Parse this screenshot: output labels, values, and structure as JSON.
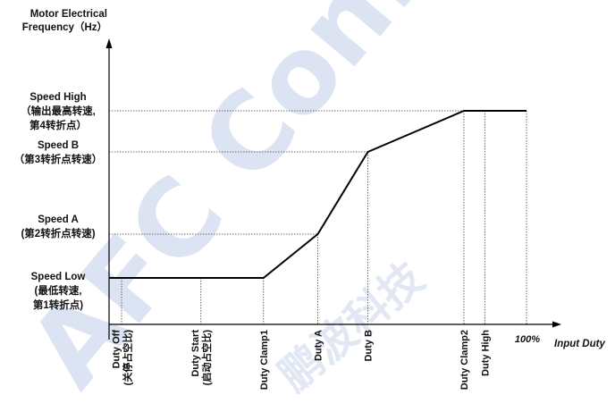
{
  "chart_data": {
    "type": "line",
    "title": "",
    "ylabel": [
      "Motor Electrical",
      "Frequency（Hz）"
    ],
    "xlabel": "Input Duty",
    "x_end_label": "100%",
    "watermark": [
      "AFC Confidential",
      "鹏波科技"
    ],
    "y_levels": [
      {
        "key": "speed_low",
        "lines": [
          "Speed Low",
          "(最低转速,",
          "第1转折点)"
        ],
        "value": 0
      },
      {
        "key": "speed_a",
        "lines": [
          "Speed A",
          "(第2转折点转速)"
        ],
        "value": 1
      },
      {
        "key": "speed_b",
        "lines": [
          "Speed B",
          "（第3转折点转速）"
        ],
        "value": 2
      },
      {
        "key": "speed_high",
        "lines": [
          "Speed High",
          "（输出最高转速,",
          "第4转折点）"
        ],
        "value": 3
      }
    ],
    "x_ticks": [
      {
        "key": "duty_off",
        "lines": [
          "Duty Off",
          "(关停占空比)"
        ],
        "value": 0.03
      },
      {
        "key": "duty_start",
        "lines": [
          "Duty Start",
          "(启动占空比)"
        ],
        "value": 0.22
      },
      {
        "key": "duty_clamp1",
        "lines": [
          "Duty Clamp1"
        ],
        "value": 0.37
      },
      {
        "key": "duty_a",
        "lines": [
          "Duty A"
        ],
        "value": 0.5
      },
      {
        "key": "duty_b",
        "lines": [
          "Duty B"
        ],
        "value": 0.62
      },
      {
        "key": "duty_clamp2",
        "lines": [
          "Duty Clamp2"
        ],
        "value": 0.85
      },
      {
        "key": "duty_high",
        "lines": [
          "Duty High"
        ],
        "value": 0.9
      }
    ],
    "series": [
      {
        "points": [
          [
            0,
            0
          ],
          [
            0.37,
            0
          ],
          [
            0.5,
            1
          ],
          [
            0.62,
            2
          ],
          [
            0.85,
            3
          ],
          [
            1.0,
            3
          ]
        ]
      }
    ],
    "grid": false
  }
}
